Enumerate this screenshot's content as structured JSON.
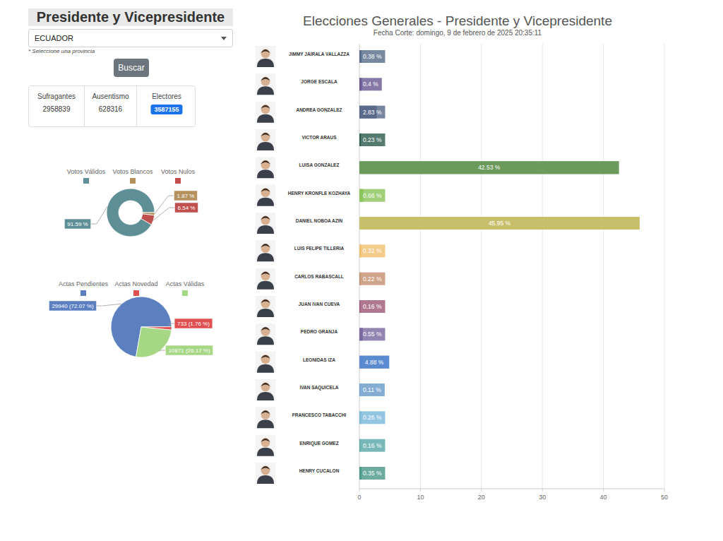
{
  "page": {
    "title": "Presidente y Vicepresidente",
    "dropdown": "ECUADOR",
    "hint": "* Seleccione una provincia",
    "button": "Buscar",
    "stats": [
      {
        "label": "Sufragantes",
        "value": 2958839
      },
      {
        "label": "Ausentismo",
        "value": 628316
      },
      {
        "label": "Electores",
        "value": 3587155
      }
    ]
  },
  "chart_data": [
    {
      "type": "donut",
      "categories": [
        "Votos Válidos",
        "Votos Blancos",
        "Votos Nulos"
      ],
      "values": [
        91.59,
        1.87,
        6.54
      ],
      "value_labels": [
        "91.59 %",
        "1.87 %",
        "6.54 %"
      ],
      "colors": [
        "#5f8f96",
        "#b5915e",
        "#c0504d"
      ],
      "legend": "top",
      "data_labels": true
    },
    {
      "type": "pie",
      "categories": [
        "Actas Pendientes",
        "Actas Novedad",
        "Actas Válidas"
      ],
      "values": [
        29940,
        733,
        10871
      ],
      "value_labels": [
        "29940 (72.07 %)",
        "733 (1.76 %)",
        "10871 (26.17 %)"
      ],
      "colors": [
        "#5b7fbf",
        "#e05050",
        "#a6d785"
      ],
      "legend": "top",
      "data_labels": true
    },
    {
      "type": "bar",
      "orientation": "horizontal",
      "title": "Elecciones Generales - Presidente y Vicepresidente",
      "subtitle": "Fecha Corte: domingo, 9 de febrero de 2025 20:35:11",
      "categories": [
        "JIMMY JAIRALA VALLAZZA",
        "JORGE ESCALA",
        "ANDREA GONZALEZ",
        "VICTOR ARAUS",
        "LUISA GONZALEZ",
        "HENRY KRONFLE KOZHAYA",
        "DANIEL NOBOA AZIN",
        "LUIS FELIPE TILLERIA",
        "CARLOS RABASCALL",
        "JUAN IVAN CUEVA",
        "PEDRO GRANJA",
        "LEONIDAS IZA",
        "IVAN SAQUICELA",
        "FRANCESCO TABACCHI",
        "ENRIQUE GOMEZ",
        "HENRY CUCALON"
      ],
      "values": [
        0.38,
        0.4,
        2.83,
        0.23,
        42.53,
        0.66,
        45.95,
        0.32,
        0.22,
        0.16,
        0.55,
        4.88,
        0.11,
        0.26,
        0.16,
        0.35
      ],
      "value_labels": [
        "0.38 %",
        "0.4 %",
        "2.83 %",
        "0.23 %",
        "42.53 %",
        "0.66 %",
        "45.95 %",
        "0.32 %",
        "0.22 %",
        "0.16 %",
        "0.55 %",
        "4.88 %",
        "0.11 %",
        "0.26 %",
        "0.16 %",
        "0.35 %"
      ],
      "colors": [
        "#5a6e8c",
        "#6b5b95",
        "#5a6a8a",
        "#2f5d50",
        "#6b9a5b",
        "#8ac45a",
        "#c8bf6a",
        "#f0c070",
        "#c49070",
        "#9e5a78",
        "#7a6aa0",
        "#5a8ad0",
        "#6a9ac8",
        "#7ab8d8",
        "#5aa8a8",
        "#4a9a8a"
      ],
      "xlim": [
        0,
        50
      ],
      "xticks": [
        0,
        10,
        20,
        30,
        40,
        50
      ],
      "grid": true,
      "data_labels": true
    }
  ]
}
